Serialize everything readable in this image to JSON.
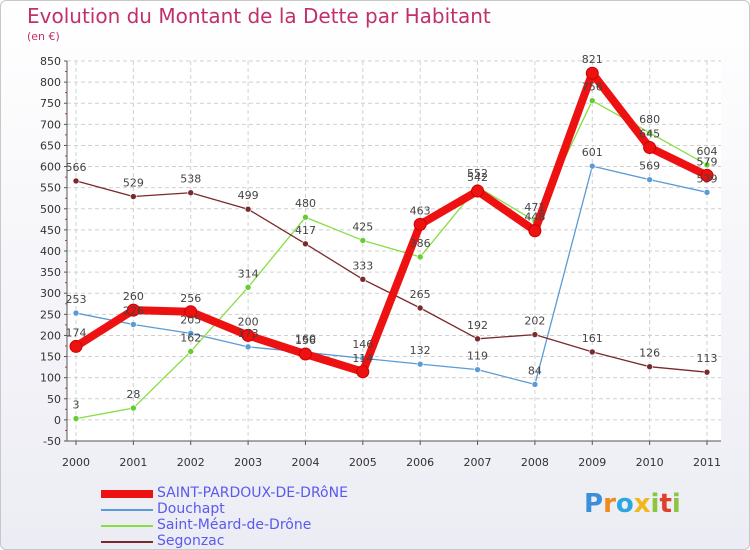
{
  "chart_data": {
    "type": "line",
    "title": "Evolution du Montant de la Dette par Habitant",
    "unit": "(en €)",
    "xlabel": "",
    "ylabel": "",
    "x": [
      "2000",
      "2001",
      "2002",
      "2003",
      "2004",
      "2005",
      "2006",
      "2007",
      "2008",
      "2009",
      "2010",
      "2011"
    ],
    "ylim": [
      -50,
      850
    ],
    "yticks": [
      -50,
      0,
      50,
      100,
      150,
      200,
      250,
      300,
      350,
      400,
      450,
      500,
      550,
      600,
      650,
      700,
      750,
      800,
      850
    ],
    "grid": true,
    "legend_position": "bottom-left",
    "series": [
      {
        "name": "SAINT-PARDOUX-DE-DRôNE",
        "color": "#ee1111",
        "marker": "#ee1111",
        "values": [
          174,
          260,
          256,
          200,
          156,
          114,
          463,
          542,
          448,
          821,
          645,
          579
        ],
        "labels": [
          "174",
          "260",
          "256",
          "200",
          "156",
          "114",
          "463",
          "542",
          "448",
          "821",
          "645",
          "579"
        ],
        "main": true
      },
      {
        "name": "Douchapt",
        "color": "#5a9bd5",
        "marker": "#5a9bd5",
        "values": [
          253,
          226,
          205,
          173,
          160,
          146,
          132,
          119,
          84,
          601,
          569,
          539
        ],
        "labels": [
          "253",
          "226",
          "205",
          "173",
          "160",
          "146",
          "132",
          "119",
          "84",
          "601",
          "569",
          "539"
        ]
      },
      {
        "name": "Saint-Méard-de-Drône",
        "color": "#88dd44",
        "marker": "#66cc33",
        "values": [
          3,
          28,
          162,
          314,
          480,
          425,
          386,
          552,
          471,
          756,
          680,
          604
        ],
        "labels": [
          "3",
          "28",
          "162",
          "314",
          "480",
          "425",
          "386",
          "552",
          "471",
          "756",
          "680",
          "604"
        ]
      },
      {
        "name": "Segonzac",
        "color": "#7a2a2a",
        "marker": "#7a2a2a",
        "values": [
          566,
          529,
          538,
          499,
          417,
          333,
          265,
          192,
          202,
          161,
          126,
          113
        ],
        "labels": [
          "566",
          "529",
          "538",
          "499",
          "417",
          "333",
          "265",
          "192",
          "202",
          "161",
          "126",
          "113"
        ]
      }
    ]
  },
  "brand": {
    "letters": [
      "P",
      "r",
      "o",
      "x",
      "i",
      "t",
      "i"
    ],
    "colors": [
      "#3a8fd8",
      "#f08a1c",
      "#2aa7e0",
      "#f0b81c",
      "#8cc63f",
      "#e0402a",
      "#8cc63f"
    ]
  }
}
